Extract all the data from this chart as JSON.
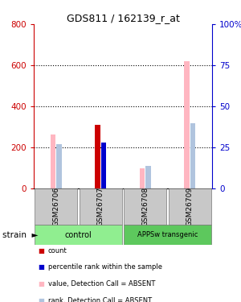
{
  "title": "GDS811 / 162139_r_at",
  "samples": [
    "GSM26706",
    "GSM26707",
    "GSM26708",
    "GSM26709"
  ],
  "group_label": "strain",
  "groups": [
    {
      "name": "control",
      "color": "#90EE90",
      "indices": [
        0,
        1
      ]
    },
    {
      "name": "APPSw transgenic",
      "color": "#5DC85D",
      "indices": [
        2,
        3
      ]
    }
  ],
  "ylim_left": [
    0,
    800
  ],
  "ylim_right": [
    0,
    100
  ],
  "yticks_left": [
    0,
    200,
    400,
    600,
    800
  ],
  "yticks_right": [
    0,
    25,
    50,
    75,
    100
  ],
  "ytick_labels_left": [
    "0",
    "200",
    "400",
    "600",
    "800"
  ],
  "ytick_labels_right": [
    "0",
    "25",
    "50",
    "75",
    "100%"
  ],
  "value_bars": [
    265,
    310,
    100,
    620
  ],
  "rank_bars_pct": [
    27,
    28,
    14,
    40
  ],
  "count_bars": [
    0,
    310,
    0,
    0
  ],
  "percentile_bars_pct": [
    0,
    28,
    0,
    0
  ],
  "value_color": "#FFB6C1",
  "rank_color": "#B0C4DE",
  "count_color": "#CC0000",
  "percentile_color": "#0000CC",
  "bar_width": 0.12,
  "left_axis_color": "#CC0000",
  "right_axis_color": "#0000CC",
  "background_color": "#ffffff",
  "grid_color": "#000000",
  "sample_box_color": "#CCCCCC",
  "legend_items": [
    {
      "label": "count",
      "color": "#CC0000"
    },
    {
      "label": "percentile rank within the sample",
      "color": "#0000CC"
    },
    {
      "label": "value, Detection Call = ABSENT",
      "color": "#FFB6C1"
    },
    {
      "label": "rank, Detection Call = ABSENT",
      "color": "#B0C4DE"
    }
  ]
}
